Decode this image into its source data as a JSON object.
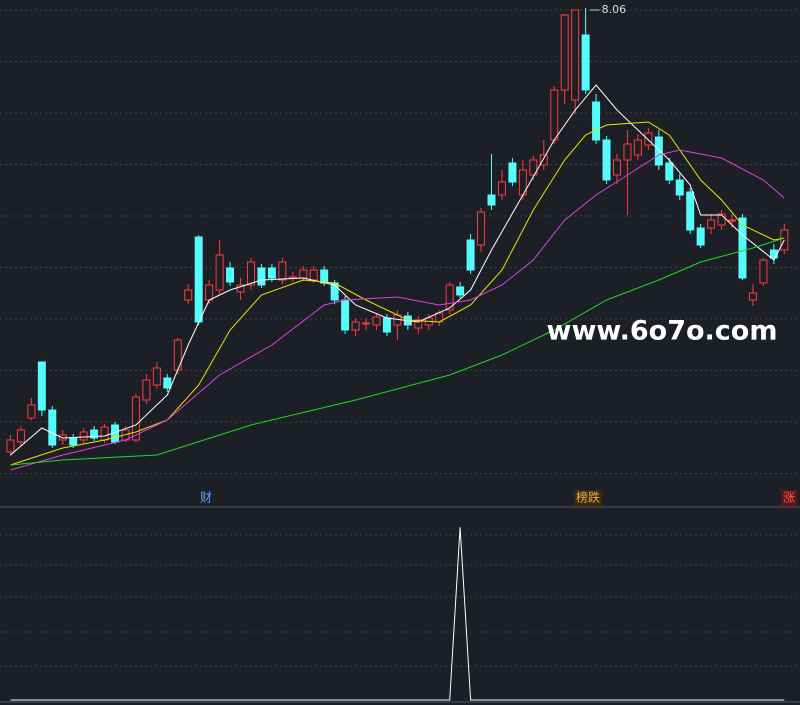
{
  "chart_data": [
    {
      "type": "candlestick",
      "x": [
        0,
        1,
        2,
        3,
        4,
        5,
        6,
        7,
        8,
        9,
        10,
        11,
        12,
        13,
        14,
        15,
        16,
        17,
        18,
        19,
        20,
        21,
        22,
        23,
        24,
        25,
        26,
        27,
        28,
        29,
        30,
        31,
        32,
        33,
        34,
        35,
        36,
        37,
        38,
        39,
        40,
        41,
        42,
        43,
        44,
        45,
        46,
        47,
        48,
        49,
        50,
        51,
        52,
        53,
        54,
        55,
        56,
        57,
        58,
        59,
        60,
        61,
        62,
        63,
        64,
        65,
        66,
        67,
        68,
        69,
        70,
        71,
        72,
        73,
        74
      ],
      "open": [
        3.62,
        3.72,
        3.96,
        4.52,
        4.04,
        3.74,
        3.76,
        3.74,
        3.84,
        3.74,
        3.89,
        3.74,
        3.74,
        4.14,
        4.29,
        4.36,
        4.44,
        5.14,
        5.77,
        5.14,
        5.24,
        5.46,
        5.22,
        5.29,
        5.46,
        5.46,
        5.34,
        5.36,
        5.36,
        5.34,
        5.44,
        5.31,
        5.14,
        4.84,
        4.9,
        4.89,
        4.96,
        4.89,
        4.98,
        4.86,
        4.89,
        4.92,
        5.04,
        5.27,
        5.74,
        5.69,
        6.19,
        6.19,
        6.51,
        6.19,
        6.39,
        6.49,
        6.74,
        7.24,
        7.14,
        7.79,
        7.12,
        6.74,
        6.39,
        6.54,
        6.59,
        6.69,
        6.77,
        6.51,
        6.34,
        6.22,
        5.86,
        5.86,
        5.89,
        5.93,
        5.96,
        5.14,
        5.31,
        5.64,
        5.64
      ],
      "high": [
        3.79,
        3.88,
        4.16,
        4.52,
        4.08,
        3.84,
        3.8,
        3.86,
        3.88,
        3.9,
        3.92,
        3.88,
        4.2,
        4.4,
        4.52,
        4.4,
        4.76,
        5.3,
        5.79,
        5.34,
        5.74,
        5.52,
        5.36,
        5.56,
        5.5,
        5.5,
        5.56,
        5.42,
        5.48,
        5.48,
        5.48,
        5.34,
        5.18,
        4.96,
        4.96,
        5.0,
        5.0,
        5.04,
        5.02,
        4.98,
        5.0,
        5.04,
        5.32,
        5.32,
        5.8,
        6.06,
        6.6,
        6.44,
        6.56,
        6.54,
        6.58,
        6.74,
        7.28,
        8.0,
        8.04,
        8.06,
        7.2,
        6.78,
        6.6,
        6.84,
        6.8,
        6.86,
        6.84,
        6.56,
        6.4,
        6.26,
        5.9,
        6.0,
        6.04,
        6.0,
        6.0,
        5.3,
        5.56,
        5.7,
        5.9
      ],
      "low": [
        3.58,
        3.68,
        3.94,
        3.98,
        3.66,
        3.69,
        3.66,
        3.7,
        3.73,
        3.71,
        3.7,
        3.72,
        3.72,
        4.1,
        4.25,
        4.22,
        4.4,
        5.1,
        4.89,
        5.1,
        5.2,
        5.28,
        5.14,
        5.24,
        5.26,
        5.32,
        5.3,
        5.32,
        5.33,
        5.31,
        5.28,
        5.1,
        4.8,
        4.78,
        4.84,
        4.84,
        4.78,
        4.74,
        4.84,
        4.8,
        4.84,
        4.88,
        5.0,
        5.16,
        5.4,
        5.62,
        6.04,
        6.14,
        6.28,
        6.14,
        6.34,
        6.44,
        6.7,
        7.1,
        7.0,
        7.2,
        6.7,
        6.3,
        6.3,
        5.99,
        6.54,
        6.64,
        6.44,
        6.3,
        6.14,
        5.8,
        5.66,
        5.8,
        5.84,
        5.86,
        5.34,
        5.08,
        5.28,
        5.5,
        5.6
      ],
      "close": [
        3.74,
        3.84,
        4.09,
        4.04,
        3.69,
        3.79,
        3.69,
        3.82,
        3.76,
        3.87,
        3.72,
        3.84,
        4.17,
        4.34,
        4.46,
        4.26,
        4.74,
        5.24,
        4.92,
        5.29,
        5.59,
        5.32,
        5.29,
        5.52,
        5.29,
        5.36,
        5.52,
        5.37,
        5.44,
        5.44,
        5.31,
        5.14,
        4.84,
        4.92,
        4.91,
        4.97,
        4.82,
        4.99,
        4.89,
        4.94,
        4.96,
        5.01,
        5.29,
        5.19,
        5.44,
        6.02,
        6.09,
        6.32,
        6.32,
        6.44,
        6.54,
        6.59,
        7.24,
        7.99,
        8.04,
        7.24,
        6.74,
        6.34,
        6.54,
        6.7,
        6.74,
        6.81,
        6.49,
        6.34,
        6.19,
        5.84,
        5.69,
        5.94,
        6.0,
        5.94,
        5.36,
        5.21,
        5.54,
        5.56,
        5.84
      ],
      "up_color": "#ff3c3c",
      "down_color": "#54fcfc",
      "xlim": [
        -1,
        75.5
      ],
      "ylim": [
        3.09,
        8.14
      ],
      "series": [
        {
          "color": "#ffffff",
          "x": [
            0,
            3,
            5,
            9,
            12,
            15,
            17,
            19,
            21,
            24,
            28,
            31,
            33,
            36,
            39,
            42,
            44,
            46,
            49,
            52,
            54,
            56,
            58,
            61,
            63,
            65,
            66,
            68,
            70,
            73,
            74
          ],
          "values": [
            3.59,
            3.86,
            3.76,
            3.78,
            3.89,
            4.19,
            4.69,
            5.14,
            5.24,
            5.34,
            5.36,
            5.29,
            5.09,
            4.96,
            4.92,
            5.06,
            5.24,
            5.64,
            6.19,
            6.74,
            7.04,
            7.29,
            7.04,
            6.74,
            6.54,
            6.29,
            5.99,
            5.99,
            5.79,
            5.54,
            5.74
          ]
        },
        {
          "color": "#e6e600",
          "x": [
            0,
            5,
            9,
            12,
            15,
            18,
            21,
            24,
            28,
            31,
            34,
            38,
            41,
            44,
            47,
            50,
            53,
            55,
            57,
            61,
            63,
            66,
            68,
            70,
            73,
            74
          ],
          "values": [
            3.49,
            3.66,
            3.74,
            3.82,
            3.94,
            4.29,
            4.84,
            5.19,
            5.34,
            5.31,
            5.14,
            4.94,
            4.92,
            5.09,
            5.44,
            6.04,
            6.54,
            6.79,
            6.89,
            6.92,
            6.79,
            6.34,
            6.14,
            5.89,
            5.74,
            5.76
          ]
        },
        {
          "color": "#e040e0",
          "x": [
            0,
            5,
            11,
            15,
            20,
            25,
            30,
            32,
            37,
            41,
            44,
            47,
            50,
            53,
            56,
            59,
            62,
            64,
            68,
            72,
            74
          ],
          "values": [
            3.44,
            3.59,
            3.74,
            3.94,
            4.39,
            4.69,
            5.09,
            5.14,
            5.17,
            5.09,
            5.14,
            5.29,
            5.54,
            5.94,
            6.19,
            6.39,
            6.59,
            6.64,
            6.56,
            6.34,
            6.16
          ]
        },
        {
          "color": "#22d822",
          "x": [
            0,
            5,
            14,
            23,
            33,
            42,
            47,
            52,
            57,
            62,
            66,
            71,
            74
          ],
          "values": [
            3.49,
            3.54,
            3.59,
            3.89,
            4.14,
            4.39,
            4.59,
            4.84,
            5.14,
            5.34,
            5.52,
            5.66,
            5.76
          ]
        }
      ]
    },
    {
      "type": "line",
      "xlim": [
        -1,
        75.5
      ],
      "ylim": [
        0,
        1.1
      ],
      "series": [
        {
          "color": "#ffffff",
          "x": [
            0,
            42,
            43,
            44,
            74
          ],
          "values": [
            0,
            0,
            1,
            0,
            0
          ]
        }
      ]
    }
  ],
  "markers": [
    "财",
    "榜跌",
    "涨"
  ],
  "watermark": "www.6o7o.com"
}
